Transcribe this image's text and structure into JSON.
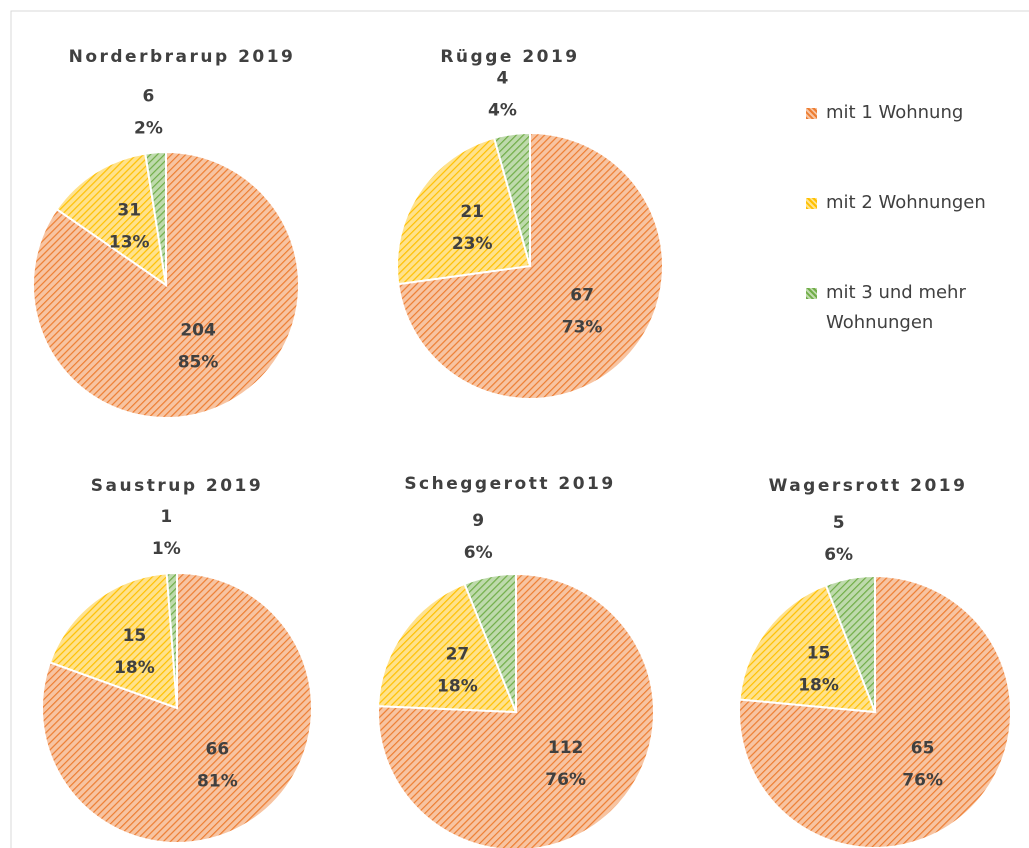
{
  "chart_data": [
    {
      "type": "pie",
      "title": "Norderbrarup 2019",
      "categories": [
        "mit 1 Wohnung",
        "mit 2 Wohnungen",
        "mit 3 und mehr Wohnungen"
      ],
      "colors": [
        "#ed7d31",
        "#ffc000",
        "#70ad47"
      ],
      "values": [
        204,
        31,
        6
      ],
      "percentages": [
        85,
        13,
        2
      ],
      "percentage_labels": [
        "85%",
        "13%",
        "2%"
      ]
    },
    {
      "type": "pie",
      "title": "Rügge 2019",
      "categories": [
        "mit 1 Wohnung",
        "mit 2 Wohnungen",
        "mit 3 und mehr Wohnungen"
      ],
      "colors": [
        "#ed7d31",
        "#ffc000",
        "#70ad47"
      ],
      "values": [
        67,
        21,
        4
      ],
      "percentages": [
        73,
        23,
        4
      ],
      "percentage_labels": [
        "73%",
        "23%",
        "4%"
      ]
    },
    {
      "type": "pie",
      "title": "Saustrup 2019",
      "categories": [
        "mit 1 Wohnung",
        "mit 2 Wohnungen",
        "mit 3 und mehr Wohnungen"
      ],
      "colors": [
        "#ed7d31",
        "#ffc000",
        "#70ad47"
      ],
      "values": [
        66,
        15,
        1
      ],
      "percentages": [
        81,
        18,
        1
      ],
      "percentage_labels": [
        "81%",
        "18%",
        "1%"
      ]
    },
    {
      "type": "pie",
      "title": "Scheggerott 2019",
      "categories": [
        "mit 1 Wohnung",
        "mit 2 Wohnungen",
        "mit 3 und mehr Wohnungen"
      ],
      "colors": [
        "#ed7d31",
        "#ffc000",
        "#70ad47"
      ],
      "values": [
        112,
        27,
        9
      ],
      "percentages": [
        76,
        18,
        6
      ],
      "percentage_labels": [
        "76%",
        "18%",
        "6%"
      ]
    },
    {
      "type": "pie",
      "title": "Wagersrott 2019",
      "categories": [
        "mit 1 Wohnung",
        "mit 2 Wohnungen",
        "mit 3 und mehr Wohnungen"
      ],
      "colors": [
        "#ed7d31",
        "#ffc000",
        "#70ad47"
      ],
      "values": [
        65,
        15,
        5
      ],
      "percentages": [
        76,
        18,
        6
      ],
      "percentage_labels": [
        "76%",
        "18%",
        "6%"
      ]
    }
  ]
}
